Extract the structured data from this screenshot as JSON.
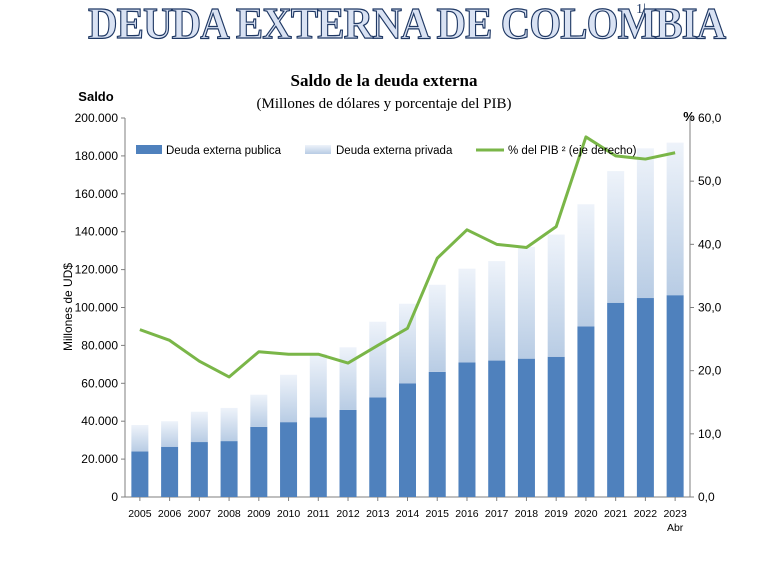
{
  "banner": {
    "title": "DEUDA EXTERNA DE COLOMBIA",
    "mark": "1|"
  },
  "chart_data": {
    "type": "bar",
    "title": "Saldo de la deuda externa",
    "subtitle": "(Millones  de dólares y porcentaje del PIB)",
    "left_axis_title": "Saldo",
    "ylabel": "Millones de UD$",
    "right_axis_title": "%",
    "categories": [
      "2005",
      "2006",
      "2007",
      "2008",
      "2009",
      "2010",
      "2011",
      "2012",
      "2013",
      "2014",
      "2015",
      "2016",
      "2017",
      "2018",
      "2019",
      "2020",
      "2021",
      "2022",
      "2023"
    ],
    "category_sublabels": {
      "2023": "Abr"
    },
    "ylim": [
      0,
      200000
    ],
    "y2lim": [
      0,
      60
    ],
    "yticks": [
      "0",
      "20.000",
      "40.000",
      "60.000",
      "80.000",
      "100.000",
      "120.000",
      "140.000",
      "160.000",
      "180.000",
      "200.000"
    ],
    "y2ticks": [
      "0,0",
      "10,0",
      "20,0",
      "30,0",
      "40,0",
      "50,0",
      "60,0"
    ],
    "stacked": true,
    "series": [
      {
        "name": "Deuda externa publica",
        "kind": "bar",
        "color": "#4f81bd",
        "values": [
          24000,
          26500,
          29000,
          29500,
          37000,
          39500,
          42000,
          46000,
          52500,
          60000,
          66000,
          71000,
          72000,
          73000,
          74000,
          90000,
          102500,
          105000,
          106500
        ]
      },
      {
        "name": "Deuda externa privada",
        "kind": "bar",
        "color": "#b8cce4",
        "values": [
          14000,
          13500,
          16000,
          17500,
          17000,
          25000,
          33500,
          33000,
          40000,
          42000,
          46000,
          49500,
          52500,
          59000,
          64500,
          64500,
          69500,
          79000,
          80500
        ]
      },
      {
        "name": "% del PIB ² (eje derecho)",
        "kind": "line",
        "axis": "right",
        "color": "#7ab648",
        "values": [
          26.5,
          24.8,
          21.5,
          19.0,
          23.0,
          22.6,
          22.6,
          21.2,
          24.0,
          26.7,
          37.8,
          42.3,
          40.0,
          39.5,
          42.8,
          57.0,
          54.0,
          53.5,
          54.5
        ]
      }
    ],
    "legend_position": "top",
    "grid": false
  }
}
